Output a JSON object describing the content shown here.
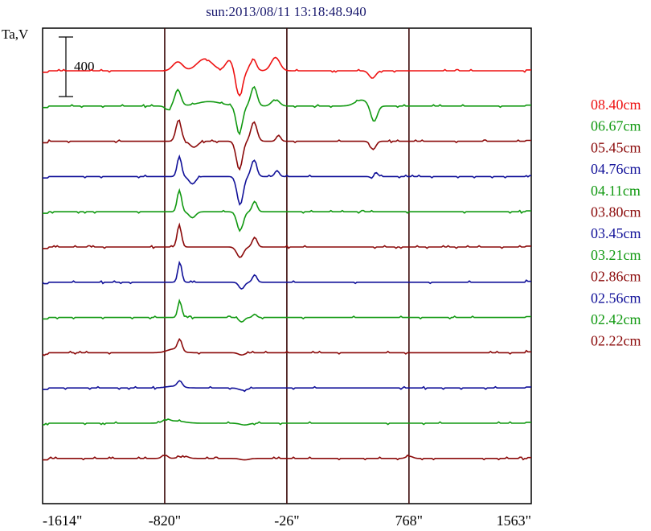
{
  "chart_data": {
    "type": "line",
    "title": "sun:2013/08/11 13:18:48.940",
    "ylabel": "Ta,V",
    "scale_bar_label": "400",
    "scale_bar_value": 400,
    "x_ticks": [
      "-1614\"",
      "-820\"",
      "-26\"",
      "768\"",
      "1563\""
    ],
    "x_tick_values": [
      -1614,
      -820,
      -26,
      768,
      1563
    ],
    "xlim": [
      -1614,
      1563
    ],
    "vertical_markers": [
      -820,
      -26,
      768
    ],
    "grid": false,
    "legend_placement": "right",
    "series": [
      {
        "name": "08.40cm",
        "color": "#ee1111",
        "peaks": [
          [
            -735,
            60,
            45
          ],
          [
            -560,
            80,
            70
          ],
          [
            -400,
            70,
            35
          ],
          [
            -335,
            -170,
            30
          ],
          [
            -245,
            80,
            28
          ],
          [
            -100,
            90,
            40
          ],
          [
            530,
            -50,
            30
          ]
        ]
      },
      {
        "name": "06.67cm",
        "color": "#119911",
        "peaks": [
          [
            -735,
            110,
            28
          ],
          [
            -800,
            -25,
            25
          ],
          [
            -530,
            30,
            110
          ],
          [
            -335,
            -190,
            28
          ],
          [
            -240,
            130,
            28
          ],
          [
            -100,
            45,
            35
          ],
          [
            540,
            -110,
            30
          ],
          [
            460,
            40,
            60
          ]
        ]
      },
      {
        "name": "05.45cm",
        "color": "#8b0a0a",
        "peaks": [
          [
            -730,
            140,
            25
          ],
          [
            -630,
            -40,
            35
          ],
          [
            -335,
            -190,
            28
          ],
          [
            -240,
            130,
            28
          ],
          [
            -80,
            40,
            20
          ],
          [
            535,
            -55,
            25
          ]
        ]
      },
      {
        "name": "04.76cm",
        "color": "#111199",
        "peaks": [
          [
            -725,
            135,
            20
          ],
          [
            -640,
            -50,
            30
          ],
          [
            -330,
            -190,
            28
          ],
          [
            -240,
            110,
            25
          ],
          [
            -90,
            40,
            20
          ],
          [
            550,
            30,
            20
          ],
          [
            530,
            -20,
            15
          ]
        ]
      },
      {
        "name": "04.11cm",
        "color": "#119911",
        "peaks": [
          [
            -725,
            145,
            20
          ],
          [
            -640,
            -40,
            30
          ],
          [
            -330,
            -130,
            28
          ],
          [
            -235,
            70,
            22
          ]
        ]
      },
      {
        "name": "03.80cm",
        "color": "#8b0a0a",
        "peaks": [
          [
            -725,
            150,
            20
          ],
          [
            -330,
            -70,
            30
          ],
          [
            -235,
            65,
            22
          ]
        ]
      },
      {
        "name": "03.45cm",
        "color": "#111199",
        "peaks": [
          [
            -722,
            135,
            18
          ],
          [
            -320,
            -45,
            25
          ],
          [
            -235,
            50,
            20
          ]
        ]
      },
      {
        "name": "03.21cm",
        "color": "#119911",
        "peaks": [
          [
            -722,
            115,
            18
          ],
          [
            -320,
            -30,
            25
          ],
          [
            -235,
            22,
            18
          ]
        ]
      },
      {
        "name": "02.86cm",
        "color": "#8b0a0a",
        "peaks": [
          [
            -722,
            75,
            20
          ],
          [
            -760,
            25,
            60
          ],
          [
            -320,
            -15,
            30
          ]
        ]
      },
      {
        "name": "02.56cm",
        "color": "#111199",
        "peaks": [
          [
            -722,
            40,
            22
          ],
          [
            -760,
            12,
            70
          ],
          [
            -310,
            -15,
            40
          ]
        ]
      },
      {
        "name": "02.42cm",
        "color": "#119911",
        "peaks": [
          [
            -750,
            15,
            80
          ],
          [
            -810,
            20,
            30
          ],
          [
            -300,
            -12,
            40
          ]
        ]
      },
      {
        "name": "02.22cm",
        "color": "#8b0a0a",
        "peaks": [
          [
            -820,
            25,
            25
          ],
          [
            -700,
            18,
            40
          ],
          [
            -300,
            -10,
            40
          ],
          [
            770,
            15,
            30
          ]
        ]
      }
    ]
  }
}
